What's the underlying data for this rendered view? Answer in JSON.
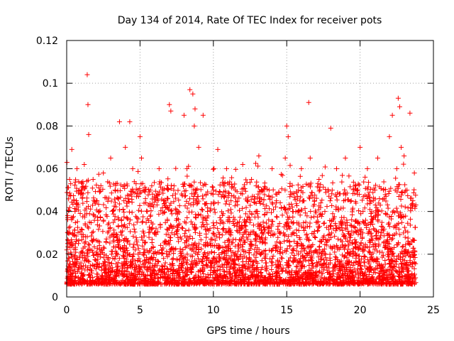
{
  "chart_data": {
    "type": "scatter",
    "title": "Day 134 of 2014, Rate Of TEC Index for receiver pots",
    "xlabel": "GPS time / hours",
    "ylabel": "ROTI / TECUs",
    "xlim": [
      0,
      25
    ],
    "ylim": [
      0,
      0.12
    ],
    "xticks": [
      0,
      5,
      10,
      15,
      20,
      25
    ],
    "xtick_labels": [
      "0",
      "5",
      "10",
      "15",
      "20",
      "25"
    ],
    "yticks": [
      0,
      0.02,
      0.04,
      0.06,
      0.08,
      0.1,
      0.12
    ],
    "ytick_labels": [
      "0",
      "0.02",
      "0.04",
      "0.06",
      "0.08",
      "0.1",
      "0.12"
    ],
    "grid": true,
    "marker": "+",
    "color": "#ff0000",
    "series": [
      {
        "name": "ROTI",
        "x": [
          0.05,
          0.1,
          0.2,
          0.3,
          0.35,
          0.5,
          0.6,
          0.7,
          0.8,
          1.0,
          1.2,
          1.4,
          1.45,
          1.5,
          1.55,
          1.8,
          2.0,
          2.2,
          2.5,
          2.8,
          3.0,
          3.3,
          3.6,
          3.9,
          4.0,
          4.3,
          4.5,
          4.8,
          5.0,
          5.1,
          5.5,
          5.8,
          6.0,
          6.3,
          6.6,
          6.9,
          7.0,
          7.1,
          7.3,
          7.6,
          8.0,
          8.2,
          8.4,
          8.6,
          8.7,
          8.75,
          8.8,
          9.0,
          9.3,
          9.6,
          10.0,
          10.3,
          10.6,
          10.9,
          11.2,
          11.5,
          11.8,
          12.0,
          12.3,
          12.6,
          13.0,
          13.1,
          13.4,
          13.8,
          14.0,
          14.3,
          14.6,
          14.9,
          15.0,
          15.1,
          15.4,
          15.8,
          16.0,
          16.3,
          16.5,
          16.6,
          16.9,
          17.2,
          17.6,
          18.0,
          18.1,
          18.4,
          18.8,
          19.0,
          19.4,
          19.8,
          20.0,
          20.2,
          20.5,
          20.9,
          21.2,
          21.6,
          22.0,
          22.2,
          22.4,
          22.5,
          22.6,
          22.7,
          22.8,
          23.0,
          23.2,
          23.4,
          23.6,
          23.7
        ],
        "y": [
          0.012,
          0.03,
          0.055,
          0.02,
          0.069,
          0.045,
          0.015,
          0.06,
          0.025,
          0.05,
          0.062,
          0.104,
          0.09,
          0.076,
          0.035,
          0.055,
          0.02,
          0.04,
          0.058,
          0.03,
          0.065,
          0.05,
          0.082,
          0.045,
          0.07,
          0.082,
          0.06,
          0.035,
          0.075,
          0.065,
          0.04,
          0.052,
          0.03,
          0.06,
          0.045,
          0.025,
          0.09,
          0.087,
          0.05,
          0.04,
          0.085,
          0.06,
          0.097,
          0.095,
          0.08,
          0.088,
          0.045,
          0.07,
          0.085,
          0.04,
          0.05,
          0.069,
          0.035,
          0.06,
          0.045,
          0.05,
          0.03,
          0.062,
          0.045,
          0.055,
          0.04,
          0.066,
          0.035,
          0.05,
          0.06,
          0.045,
          0.03,
          0.065,
          0.08,
          0.075,
          0.04,
          0.05,
          0.06,
          0.035,
          0.091,
          0.065,
          0.045,
          0.055,
          0.04,
          0.079,
          0.05,
          0.06,
          0.035,
          0.065,
          0.045,
          0.05,
          0.07,
          0.04,
          0.06,
          0.045,
          0.065,
          0.05,
          0.075,
          0.085,
          0.05,
          0.06,
          0.093,
          0.089,
          0.07,
          0.066,
          0.05,
          0.086,
          0.045,
          0.058
        ]
      }
    ]
  }
}
